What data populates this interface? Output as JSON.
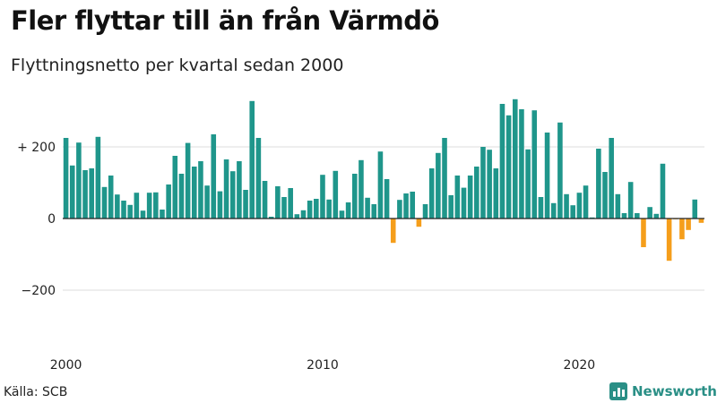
{
  "title": "Fler flyttar till än från Värmdö",
  "subtitle": "Flyttningsnetto per kvartal sedan 2000",
  "source": "Källa: SCB",
  "brand": {
    "name": "Newsworthy",
    "icon": "newsworthy-logo-icon"
  },
  "colors": {
    "positive": "#1f968b",
    "negative": "#f59e1b",
    "grid": "#dddddd",
    "zero_line": "#222222"
  },
  "chart_data": {
    "type": "bar",
    "title": "Fler flyttar till än från Värmdö",
    "subtitle": "Flyttningsnetto per kvartal sedan 2000",
    "xlabel": "",
    "ylabel": "",
    "start_year": 2000,
    "periods_per_year": 4,
    "ylim": [
      -320,
      370
    ],
    "y_ticks": [
      {
        "value": 200,
        "label": "+ 200"
      },
      {
        "value": 0,
        "label": "0"
      },
      {
        "value": -200,
        "label": "−200"
      }
    ],
    "x_ticks": [
      {
        "year": 2000,
        "label": "2000"
      },
      {
        "year": 2010,
        "label": "2010"
      },
      {
        "year": 2020,
        "label": "2020"
      }
    ],
    "grid": true,
    "values": [
      225,
      148,
      212,
      135,
      140,
      228,
      88,
      120,
      67,
      50,
      38,
      72,
      22,
      72,
      73,
      25,
      95,
      175,
      125,
      211,
      145,
      160,
      92,
      235,
      76,
      165,
      132,
      160,
      80,
      328,
      225,
      105,
      5,
      90,
      60,
      85,
      12,
      23,
      50,
      55,
      122,
      53,
      133,
      22,
      45,
      125,
      163,
      58,
      40,
      187,
      110,
      -68,
      52,
      70,
      75,
      -23,
      40,
      140,
      183,
      225,
      65,
      120,
      86,
      120,
      145,
      200,
      192,
      140,
      320,
      288,
      333,
      305,
      193,
      302,
      60,
      240,
      43,
      268,
      68,
      37,
      72,
      92,
      3,
      195,
      130,
      225,
      68,
      15,
      102,
      15,
      -80,
      32,
      13,
      153,
      -118,
      -2,
      -58,
      -32,
      53,
      -12
    ]
  }
}
